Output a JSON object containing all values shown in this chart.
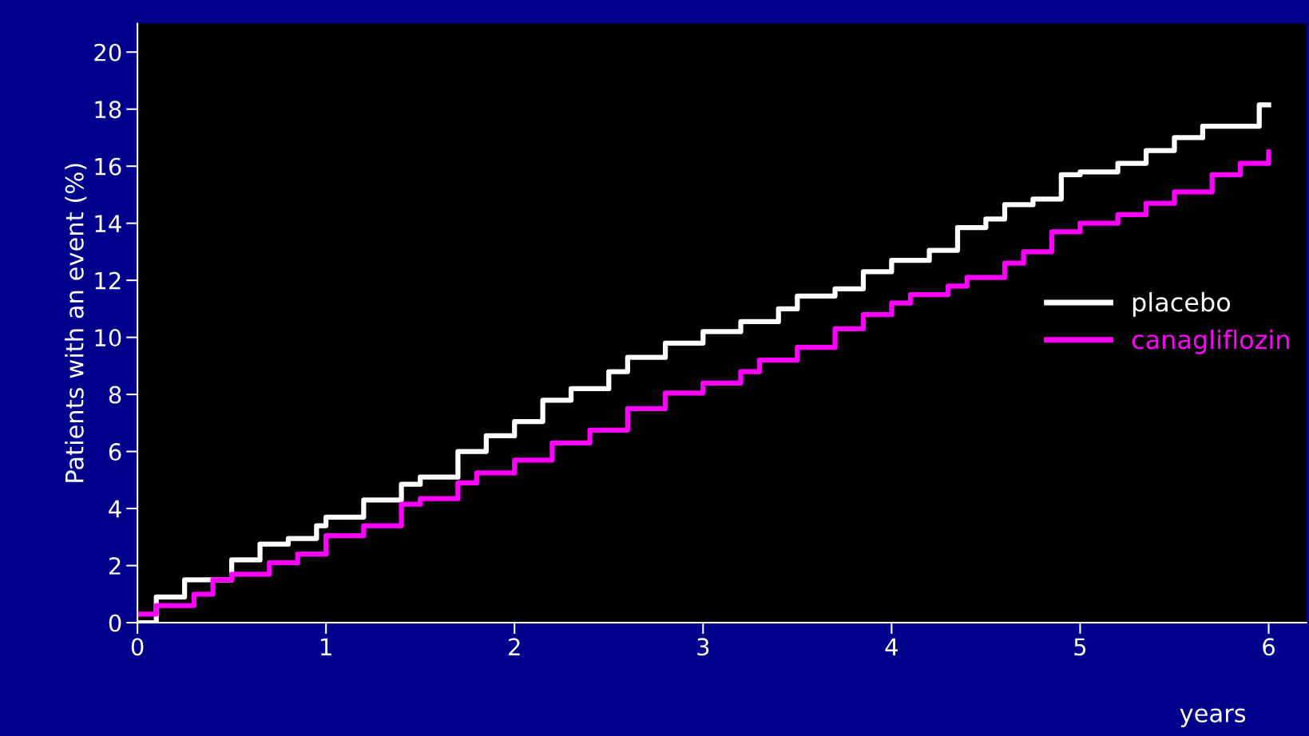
{
  "chart_data": {
    "type": "step",
    "xlabel": "years",
    "ylabel": "Patients with an event (%)",
    "xlim": [
      0,
      6.2
    ],
    "ylim": [
      0,
      21
    ],
    "xticks": [
      0,
      1,
      2,
      3,
      4,
      5,
      6
    ],
    "yticks": [
      0,
      2,
      4,
      6,
      8,
      10,
      12,
      14,
      16,
      18,
      20
    ],
    "grid": false,
    "legend": "right",
    "line_style": "solid",
    "marker": "none",
    "series": [
      {
        "name": "placebo",
        "color": "#ffffff",
        "x": [
          0,
          0.1,
          0.25,
          0.5,
          0.65,
          0.8,
          0.95,
          1.0,
          1.2,
          1.4,
          1.5,
          1.7,
          1.85,
          2.0,
          2.15,
          2.3,
          2.5,
          2.6,
          2.8,
          3.0,
          3.2,
          3.4,
          3.5,
          3.7,
          3.85,
          4.0,
          4.2,
          4.35,
          4.5,
          4.6,
          4.75,
          4.9,
          5.0,
          5.2,
          5.35,
          5.5,
          5.65,
          5.9,
          5.95,
          6.0
        ],
        "values": [
          0,
          0.9,
          1.5,
          2.2,
          2.75,
          2.95,
          3.4,
          3.7,
          4.3,
          4.85,
          5.1,
          6.0,
          6.55,
          7.05,
          7.8,
          8.2,
          8.8,
          9.3,
          9.8,
          10.2,
          10.55,
          11.0,
          11.45,
          11.7,
          12.3,
          12.7,
          13.05,
          13.85,
          14.15,
          14.65,
          14.85,
          15.7,
          15.8,
          16.1,
          16.55,
          17.0,
          17.4,
          17.4,
          18.15,
          18.15
        ]
      },
      {
        "name": "canagliflozin",
        "color": "#ff00ff",
        "x": [
          0,
          0.1,
          0.3,
          0.4,
          0.5,
          0.7,
          0.85,
          1.0,
          1.2,
          1.4,
          1.5,
          1.7,
          1.8,
          2.0,
          2.2,
          2.4,
          2.6,
          2.8,
          3.0,
          3.2,
          3.3,
          3.5,
          3.7,
          3.85,
          4.0,
          4.1,
          4.3,
          4.4,
          4.6,
          4.7,
          4.85,
          5.0,
          5.2,
          5.35,
          5.5,
          5.7,
          5.85,
          6.0
        ],
        "values": [
          0.3,
          0.6,
          1.0,
          1.5,
          1.7,
          2.1,
          2.4,
          3.05,
          3.4,
          4.15,
          4.35,
          4.9,
          5.25,
          5.7,
          6.3,
          6.75,
          7.5,
          8.05,
          8.4,
          8.8,
          9.2,
          9.65,
          10.3,
          10.8,
          11.2,
          11.5,
          11.8,
          12.1,
          12.6,
          13.0,
          13.7,
          14.0,
          14.3,
          14.7,
          15.1,
          15.7,
          16.1,
          16.5
        ]
      }
    ]
  }
}
